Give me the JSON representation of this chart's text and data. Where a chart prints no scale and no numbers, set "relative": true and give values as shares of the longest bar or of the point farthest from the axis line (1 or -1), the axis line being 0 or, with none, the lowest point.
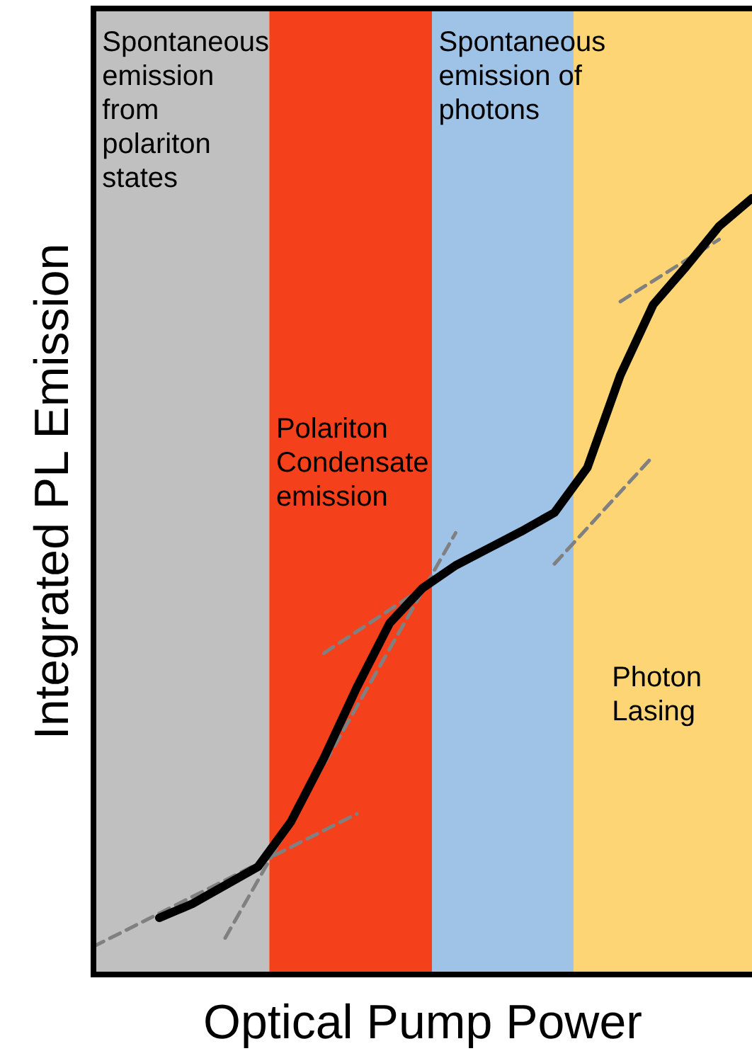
{
  "chart_data": {
    "type": "line",
    "relative": true,
    "xlabel": "Optical Pump Power",
    "ylabel": "Integrated PL Emission",
    "categories": [
      null,
      null,
      null,
      null,
      null,
      null,
      null,
      null,
      null,
      null,
      null,
      null,
      null,
      null,
      null,
      null,
      null,
      null,
      null,
      null,
      null
    ],
    "series": [
      {
        "color": "#000000",
        "line_style": "solid",
        "values": [
          null,
          null,
          0.073,
          0.091,
          0.115,
          0.139,
          0.197,
          0.279,
          0.37,
          0.453,
          0.498,
          0.527,
          0.549,
          0.571,
          0.595,
          0.653,
          0.772,
          0.863,
          0.912,
          0.964,
          1
        ]
      },
      {
        "color": "#808080",
        "line_style": "dashed",
        "values": [
          0.036,
          null,
          null,
          null,
          null,
          null,
          null,
          null,
          0.207,
          null,
          null,
          null,
          null,
          null,
          null,
          null,
          null,
          null,
          null,
          null,
          null
        ]
      },
      {
        "color": "#808080",
        "line_style": "dashed",
        "values": [
          null,
          null,
          null,
          null,
          0.047,
          null,
          null,
          null,
          null,
          null,
          null,
          0.569,
          null,
          null,
          null,
          null,
          null,
          null,
          null,
          null,
          null
        ]
      },
      {
        "color": "#808080",
        "line_style": "dashed",
        "values": [
          null,
          null,
          null,
          null,
          null,
          null,
          null,
          0.414,
          null,
          null,
          null,
          0.526,
          null,
          null,
          null,
          null,
          null,
          null,
          null,
          null,
          null
        ]
      },
      {
        "color": "#808080",
        "line_style": "dashed",
        "values": [
          null,
          null,
          null,
          null,
          null,
          null,
          null,
          null,
          null,
          null,
          null,
          null,
          null,
          null,
          0.529,
          null,
          null,
          0.668,
          null,
          null,
          null
        ]
      },
      {
        "color": "#808080",
        "line_style": "dashed",
        "values": [
          null,
          null,
          null,
          null,
          null,
          null,
          null,
          null,
          null,
          null,
          null,
          null,
          null,
          null,
          null,
          null,
          0.867,
          null,
          null,
          0.947,
          null
        ]
      }
    ],
    "annotations": [
      "Spontaneous emission from polariton states",
      "Spontaneous emission of photons",
      "Polariton Condensate emission",
      "Photon Lasing"
    ]
  }
}
